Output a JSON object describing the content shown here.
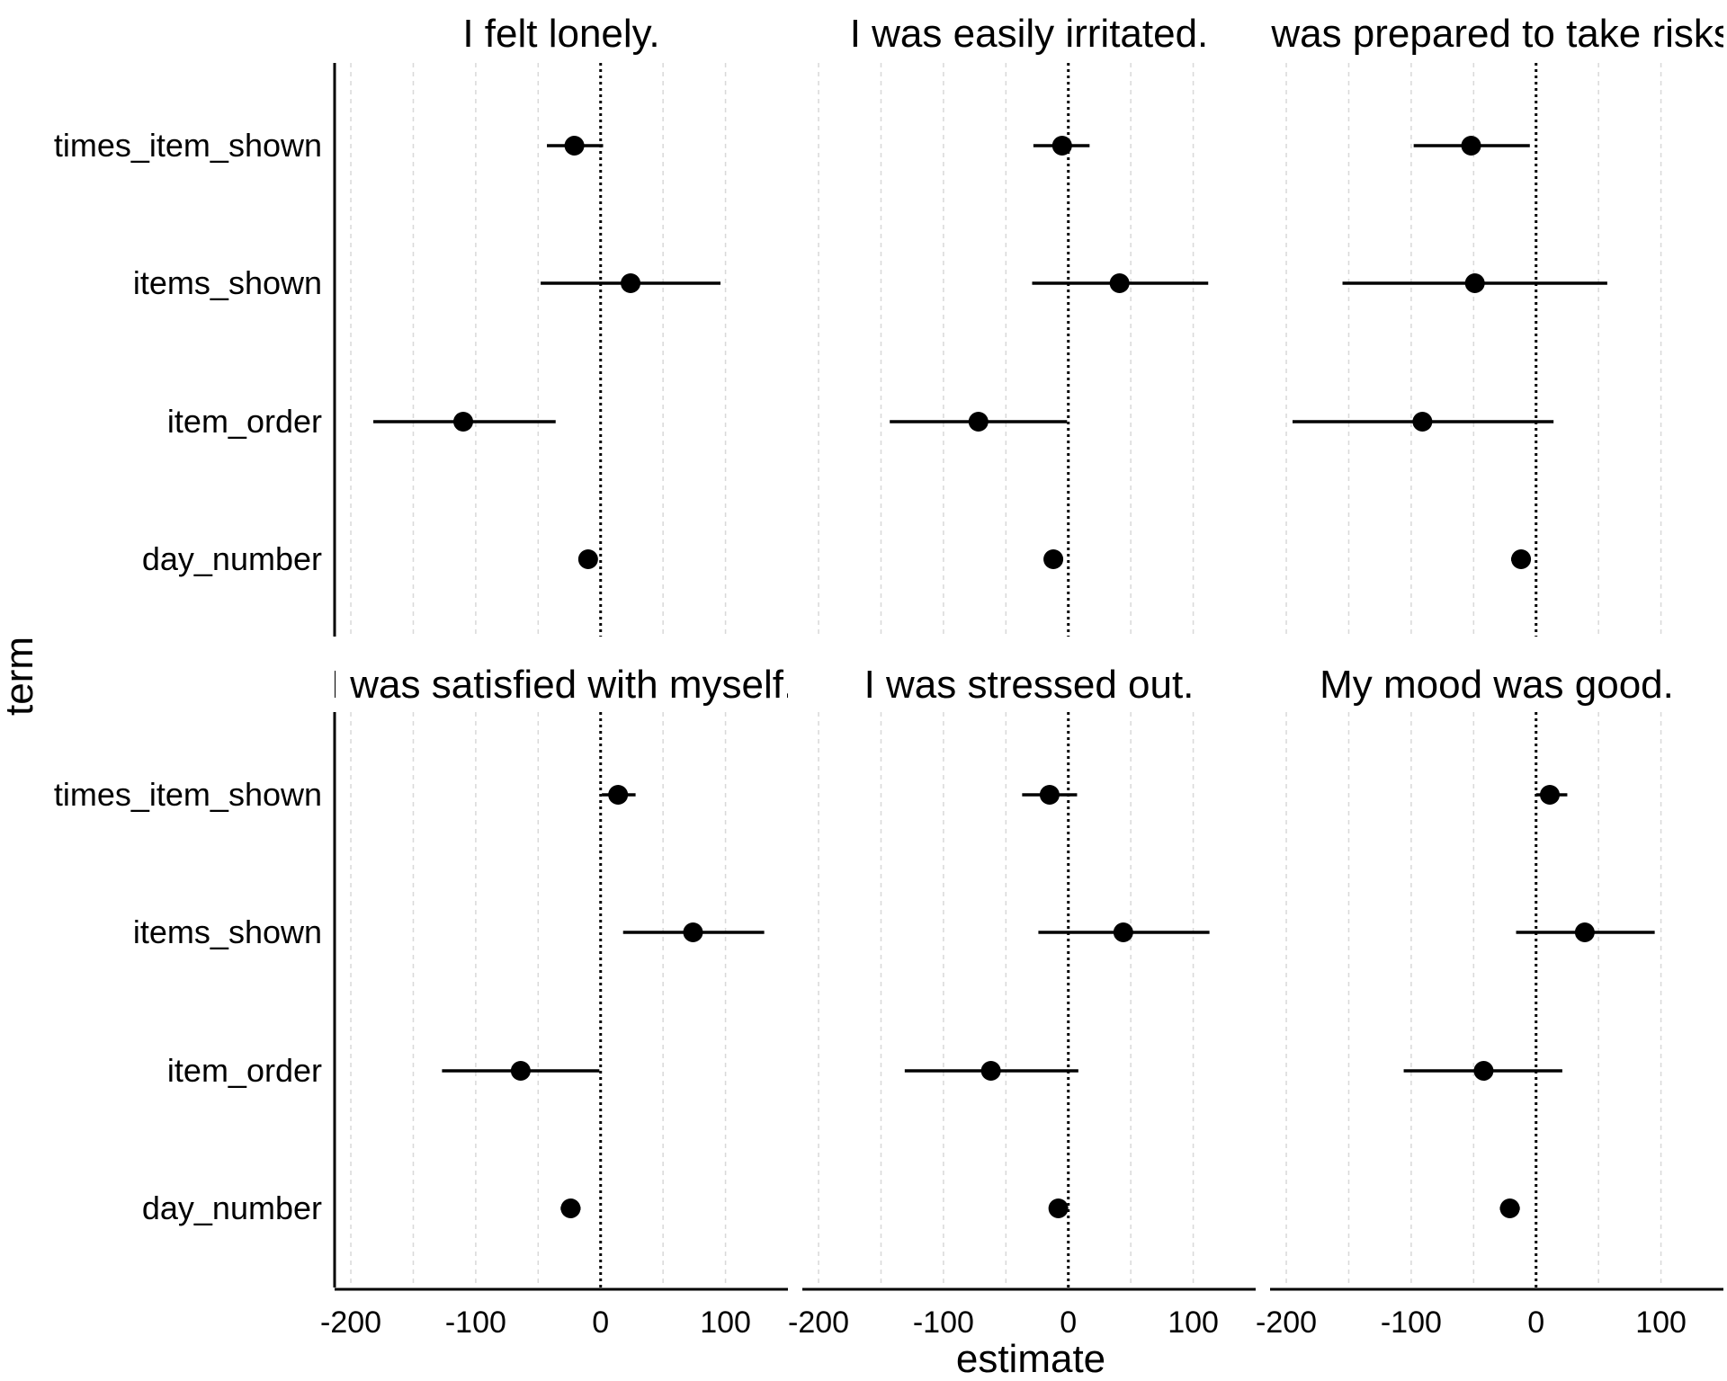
{
  "chart_data": {
    "type": "scatter",
    "subtype": "coefficient-plot-facets",
    "xlabel": "estimate",
    "ylabel": "term",
    "xlim": [
      -213,
      150
    ],
    "xticks": [
      -200,
      -100,
      0,
      100
    ],
    "xtick_labels": [
      "-200",
      "-100",
      "0",
      "100"
    ],
    "minor_gridlines": [
      -150,
      -50,
      50
    ],
    "reference_line": 0,
    "terms": [
      "times_item_shown",
      "items_shown",
      "item_order",
      "day_number"
    ],
    "facets": [
      {
        "title": "I felt lonely.",
        "points": [
          {
            "term": "times_item_shown",
            "estimate": -21,
            "low": -43,
            "high": 2
          },
          {
            "term": "items_shown",
            "estimate": 24,
            "low": -48,
            "high": 96
          },
          {
            "term": "item_order",
            "estimate": -110,
            "low": -182,
            "high": -36
          },
          {
            "term": "day_number",
            "estimate": -10,
            "low": -16,
            "high": -4
          }
        ]
      },
      {
        "title": "I was easily irritated.",
        "points": [
          {
            "term": "times_item_shown",
            "estimate": -5,
            "low": -28,
            "high": 17
          },
          {
            "term": "items_shown",
            "estimate": 41,
            "low": -29,
            "high": 112
          },
          {
            "term": "item_order",
            "estimate": -72,
            "low": -143,
            "high": -1
          },
          {
            "term": "day_number",
            "estimate": -12,
            "low": -18,
            "high": -6
          }
        ]
      },
      {
        "title": "I was prepared to take risks.",
        "points": [
          {
            "term": "times_item_shown",
            "estimate": -52,
            "low": -98,
            "high": -5
          },
          {
            "term": "items_shown",
            "estimate": -49,
            "low": -155,
            "high": 57
          },
          {
            "term": "item_order",
            "estimate": -91,
            "low": -195,
            "high": 14
          },
          {
            "term": "day_number",
            "estimate": -12,
            "low": -20,
            "high": -5
          }
        ]
      },
      {
        "title": "I was satisfied with myself.",
        "points": [
          {
            "term": "times_item_shown",
            "estimate": 14,
            "low": 1,
            "high": 28
          },
          {
            "term": "items_shown",
            "estimate": 74,
            "low": 18,
            "high": 131
          },
          {
            "term": "item_order",
            "estimate": -64,
            "low": -127,
            "high": -1
          },
          {
            "term": "day_number",
            "estimate": -24,
            "low": -32,
            "high": -16
          }
        ]
      },
      {
        "title": "I was stressed out.",
        "points": [
          {
            "term": "times_item_shown",
            "estimate": -15,
            "low": -37,
            "high": 7
          },
          {
            "term": "items_shown",
            "estimate": 44,
            "low": -24,
            "high": 113
          },
          {
            "term": "item_order",
            "estimate": -62,
            "low": -131,
            "high": 8
          },
          {
            "term": "day_number",
            "estimate": -8,
            "low": -14,
            "high": -2
          }
        ]
      },
      {
        "title": "My mood was good.",
        "points": [
          {
            "term": "times_item_shown",
            "estimate": 11,
            "low": 0,
            "high": 25
          },
          {
            "term": "items_shown",
            "estimate": 39,
            "low": -16,
            "high": 95
          },
          {
            "term": "item_order",
            "estimate": -42,
            "low": -106,
            "high": 21
          },
          {
            "term": "day_number",
            "estimate": -21,
            "low": -29,
            "high": -13
          }
        ]
      }
    ],
    "grid": true,
    "legend": "none"
  }
}
